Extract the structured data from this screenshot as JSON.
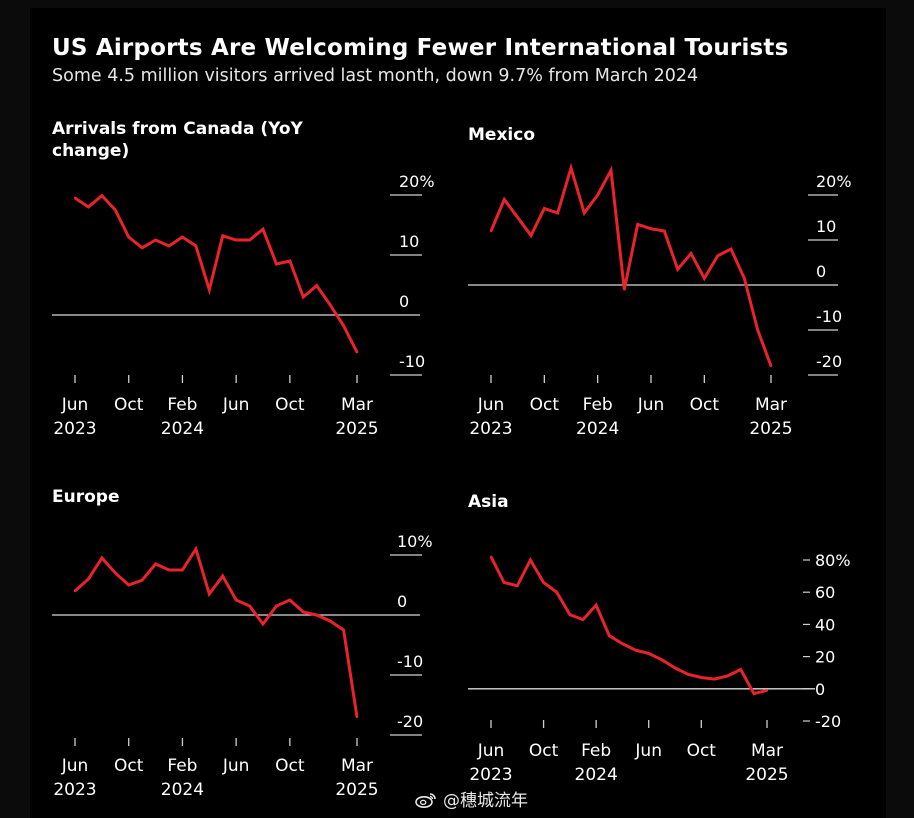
{
  "title": "US Airports Are Welcoming Fewer International Tourists",
  "subtitle": "Some 4.5 million visitors arrived last month, down 9.7% from March 2024",
  "watermark": "@穗城流年",
  "colors": {
    "line": "#e8232b",
    "zero_line": "#d9d9d9",
    "text": "#ffffff",
    "background": "#000000"
  },
  "chart_data": [
    {
      "type": "line",
      "panel_title": "Arrivals from Canada (YoY change)",
      "ylim": [
        -10,
        20
      ],
      "y_ticks": [
        -10,
        0,
        10,
        20
      ],
      "y_tick_labels": [
        "-10",
        "0",
        "10",
        "20%"
      ],
      "x_ticks": [
        0,
        4,
        8,
        12,
        16,
        21
      ],
      "x_tick_labels": [
        [
          "Jun",
          "2023"
        ],
        [
          "Oct",
          ""
        ],
        [
          "Feb",
          "2024"
        ],
        [
          "Jun",
          ""
        ],
        [
          "Oct",
          ""
        ],
        [
          "Mar",
          "2025"
        ]
      ],
      "x": [
        0,
        1,
        2,
        3,
        4,
        5,
        6,
        7,
        8,
        9,
        10,
        11,
        12,
        13,
        14,
        15,
        16,
        17,
        18,
        19,
        20,
        21
      ],
      "values": [
        19.5,
        18,
        19.9,
        17.5,
        13,
        11.2,
        12.5,
        11.5,
        13,
        11.5,
        4.2,
        13.2,
        12.5,
        12.5,
        14.3,
        8.5,
        9,
        3,
        4.9,
        1.7,
        -1.8,
        -6.2
      ]
    },
    {
      "type": "line",
      "panel_title": "Mexico",
      "ylim": [
        -20,
        20
      ],
      "y_ticks": [
        -20,
        -10,
        0,
        10,
        20
      ],
      "y_tick_labels": [
        "-20",
        "-10",
        "0",
        "10",
        "20%"
      ],
      "x_ticks": [
        0,
        4,
        8,
        12,
        16,
        21
      ],
      "x_tick_labels": [
        [
          "Jun",
          "2023"
        ],
        [
          "Oct",
          ""
        ],
        [
          "Feb",
          "2024"
        ],
        [
          "Jun",
          ""
        ],
        [
          "Oct",
          ""
        ],
        [
          "Mar",
          "2025"
        ]
      ],
      "x": [
        0,
        1,
        2,
        3,
        4,
        5,
        6,
        7,
        8,
        9,
        10,
        11,
        12,
        13,
        14,
        15,
        16,
        17,
        18,
        19,
        20,
        21
      ],
      "values": [
        12,
        19,
        15,
        11,
        17,
        16,
        26,
        16,
        20,
        25.5,
        -1,
        13.5,
        12.5,
        12,
        3.5,
        7,
        1.5,
        6.5,
        8,
        1.5,
        -10,
        -18
      ]
    },
    {
      "type": "line",
      "panel_title": "Europe",
      "ylim": [
        -20,
        10
      ],
      "y_ticks": [
        -20,
        -10,
        0,
        10
      ],
      "y_tick_labels": [
        "-20",
        "-10",
        "0",
        "10%"
      ],
      "x_ticks": [
        0,
        4,
        8,
        12,
        16,
        21
      ],
      "x_tick_labels": [
        [
          "Jun",
          "2023"
        ],
        [
          "Oct",
          ""
        ],
        [
          "Feb",
          "2024"
        ],
        [
          "Jun",
          ""
        ],
        [
          "Oct",
          ""
        ],
        [
          "Mar",
          "2025"
        ]
      ],
      "x": [
        0,
        1,
        2,
        3,
        4,
        5,
        6,
        7,
        8,
        9,
        10,
        11,
        12,
        13,
        14,
        15,
        16,
        17,
        18,
        19,
        20,
        21
      ],
      "values": [
        4,
        6,
        9.5,
        7,
        5,
        5.8,
        8.5,
        7.5,
        7.5,
        11,
        3.5,
        6.5,
        2.5,
        1.5,
        -1.5,
        1.5,
        2.5,
        0.5,
        0,
        -1,
        -2.5,
        -17
      ]
    },
    {
      "type": "line",
      "panel_title": "Asia",
      "ylim": [
        -20,
        80
      ],
      "y_ticks": [
        -20,
        0,
        20,
        40,
        60,
        80
      ],
      "y_tick_labels": [
        "-20",
        "0",
        "20",
        "40",
        "60",
        "80%"
      ],
      "x_ticks": [
        0,
        4,
        8,
        12,
        16,
        21
      ],
      "x_tick_labels": [
        [
          "Jun",
          "2023"
        ],
        [
          "Oct",
          ""
        ],
        [
          "Feb",
          "2024"
        ],
        [
          "Jun",
          ""
        ],
        [
          "Oct",
          ""
        ],
        [
          "Mar",
          "2025"
        ]
      ],
      "x": [
        0,
        1,
        2,
        3,
        4,
        5,
        6,
        7,
        8,
        9,
        10,
        11,
        12,
        13,
        14,
        15,
        16,
        17,
        18,
        19,
        20,
        21
      ],
      "values": [
        82,
        66,
        64,
        80,
        66,
        60,
        46,
        43,
        52,
        33,
        28,
        24,
        22,
        18,
        13,
        9,
        7,
        6,
        8,
        12,
        -3,
        -1
      ]
    }
  ]
}
